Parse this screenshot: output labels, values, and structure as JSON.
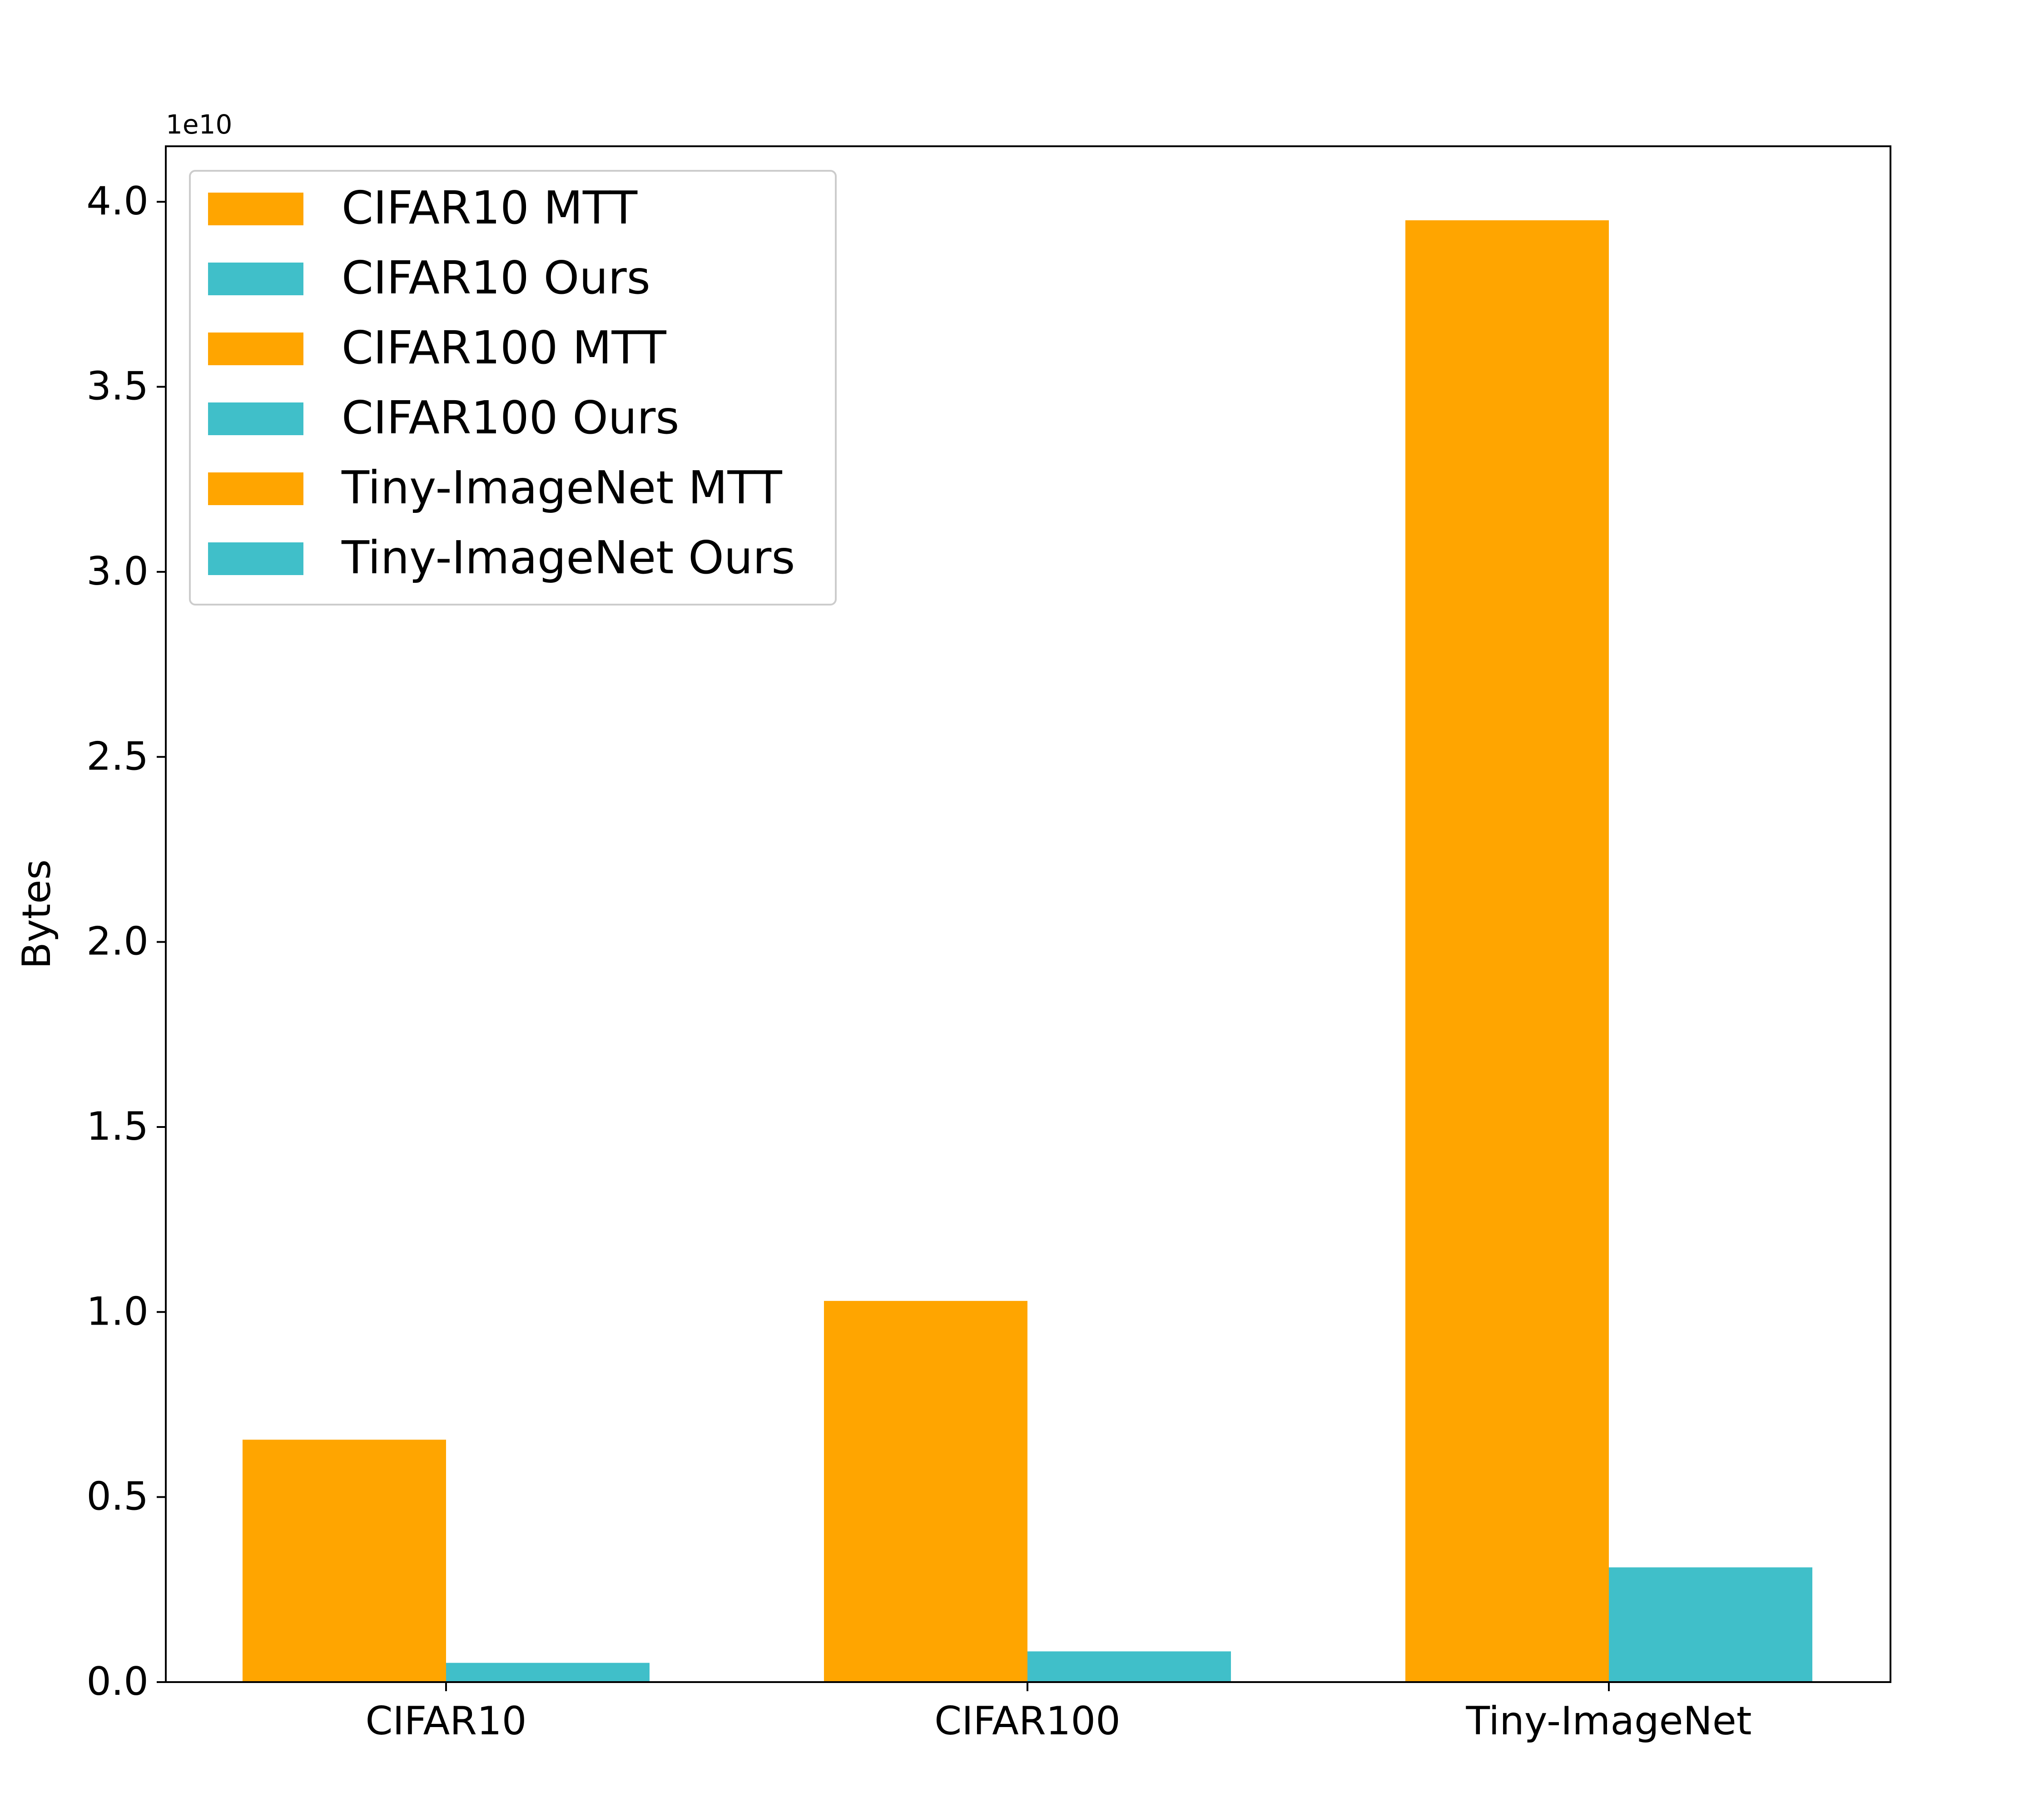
{
  "chart_data": {
    "type": "bar",
    "title": "",
    "xlabel": "",
    "ylabel": "Bytes",
    "y_offset_label": "1e10",
    "ylim": [
      0,
      4.15
    ],
    "yticks": [
      "0.0",
      "0.5",
      "1.0",
      "1.5",
      "2.0",
      "2.5",
      "3.0",
      "3.5",
      "4.0"
    ],
    "ytick_values": [
      0,
      0.5,
      1.0,
      1.5,
      2.0,
      2.5,
      3.0,
      3.5,
      4.0
    ],
    "categories": [
      "CIFAR10",
      "CIFAR100",
      "Tiny-ImageNet"
    ],
    "series": [
      {
        "name": "MTT",
        "color": "#FFA500",
        "values": [
          0.655,
          1.03,
          3.95
        ]
      },
      {
        "name": "Ours",
        "color": "#40BFC9",
        "values": [
          0.052,
          0.083,
          0.31
        ]
      }
    ],
    "legend": {
      "placement": "upper-left",
      "entries": [
        {
          "label": "CIFAR10 MTT",
          "color": "#FFA500"
        },
        {
          "label": "CIFAR10 Ours",
          "color": "#40BFC9"
        },
        {
          "label": "CIFAR100 MTT",
          "color": "#FFA500"
        },
        {
          "label": "CIFAR100 Ours",
          "color": "#40BFC9"
        },
        {
          "label": "Tiny-ImageNet MTT",
          "color": "#FFA500"
        },
        {
          "label": "Tiny-ImageNet Ours",
          "color": "#40BFC9"
        }
      ]
    },
    "grid": false
  }
}
